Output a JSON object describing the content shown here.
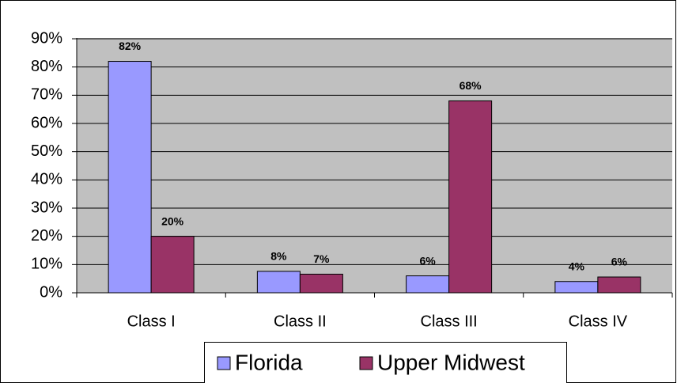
{
  "chart_data": {
    "type": "bar",
    "categories": [
      "Class I",
      "Class II",
      "Class III",
      "Class IV"
    ],
    "series": [
      {
        "name": "Florida",
        "color": "#9999ff",
        "values": [
          82,
          7.6,
          6,
          4
        ],
        "value_labels": [
          "82%",
          "8%",
          "6%",
          "4%"
        ]
      },
      {
        "name": "Upper Midwest",
        "color": "#993366",
        "values": [
          20,
          6.6,
          68,
          5.6
        ],
        "value_labels": [
          "20%",
          "7%",
          "68%",
          "6%"
        ]
      }
    ],
    "ylim": [
      0,
      90
    ],
    "yticks": [
      {
        "value": 0,
        "label": "0%"
      },
      {
        "value": 10,
        "label": "10%"
      },
      {
        "value": 20,
        "label": "20%"
      },
      {
        "value": 30,
        "label": "30%"
      },
      {
        "value": 40,
        "label": "40%"
      },
      {
        "value": 50,
        "label": "50%"
      },
      {
        "value": 60,
        "label": "60%"
      },
      {
        "value": 70,
        "label": "70%"
      },
      {
        "value": 80,
        "label": "80%"
      },
      {
        "value": 90,
        "label": "90%"
      }
    ],
    "grid": true,
    "legend": "bottom"
  }
}
